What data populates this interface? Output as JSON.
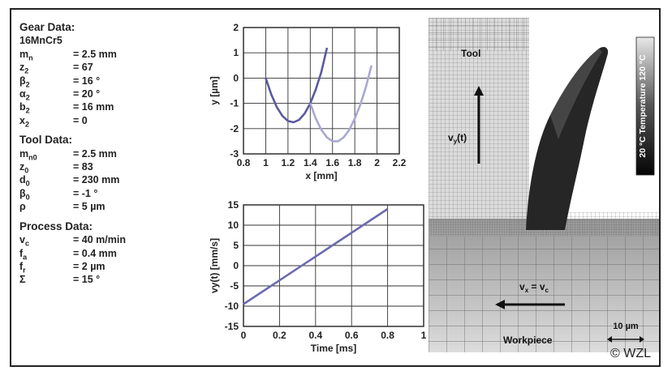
{
  "gear_data": {
    "title": "Gear Data:",
    "material": "16MnCr5",
    "params": [
      {
        "sym": "m",
        "sub": "n",
        "val": "= 2.5 mm"
      },
      {
        "sym": "z",
        "sub": "2",
        "val": "= 67"
      },
      {
        "sym": "β",
        "sub": "2",
        "val": "= 16 °"
      },
      {
        "sym": "α",
        "sub": "2",
        "val": "= 20 °"
      },
      {
        "sym": "b",
        "sub": "2",
        "val": "= 16 mm"
      },
      {
        "sym": "x",
        "sub": "2",
        "val": "= 0"
      }
    ]
  },
  "tool_data": {
    "title": "Tool Data:",
    "params": [
      {
        "sym": "m",
        "sub": "n0",
        "val": "= 2.5 mm"
      },
      {
        "sym": "z",
        "sub": "0",
        "val": "= 83"
      },
      {
        "sym": "d",
        "sub": "0",
        "val": "= 230 mm"
      },
      {
        "sym": "β",
        "sub": "0",
        "val": "= -1 °"
      },
      {
        "sym": "ρ",
        "sub": "",
        "val": "= 5 µm"
      }
    ]
  },
  "process_data": {
    "title": "Process Data:",
    "params": [
      {
        "sym": "v",
        "sub": "c",
        "val": "= 40 m/min"
      },
      {
        "sym": "f",
        "sub": "a",
        "val": "= 0.4 mm"
      },
      {
        "sym": "f",
        "sub": "r",
        "val": "= 2 µm"
      },
      {
        "sym": "Σ",
        "sub": "",
        "val": "= 15 °"
      }
    ]
  },
  "chart_data": [
    {
      "type": "line",
      "xlabel": "x [mm]",
      "ylabel": "y [µm]",
      "xlim": [
        0.8,
        2.2
      ],
      "ylim": [
        -3,
        2
      ],
      "xticks": [
        "0.8",
        "1",
        "1.2",
        "1.4",
        "1.6",
        "1.8",
        "2",
        "2.2"
      ],
      "yticks": [
        "2",
        "1",
        "0",
        "-1",
        "-2",
        "-3"
      ],
      "grid": true,
      "series": [
        {
          "x": [
            1.0,
            1.05,
            1.1,
            1.15,
            1.2,
            1.25,
            1.3,
            1.35,
            1.4,
            1.45,
            1.5,
            1.55
          ],
          "y": [
            0.0,
            -0.65,
            -1.15,
            -1.5,
            -1.7,
            -1.75,
            -1.65,
            -1.4,
            -1.0,
            -0.45,
            0.25,
            1.2
          ],
          "color": "#5b5a9e"
        },
        {
          "x": [
            1.4,
            1.45,
            1.5,
            1.55,
            1.6,
            1.65,
            1.7,
            1.75,
            1.8,
            1.85,
            1.9,
            1.95
          ],
          "y": [
            -1.0,
            -1.6,
            -2.05,
            -2.35,
            -2.5,
            -2.5,
            -2.35,
            -2.05,
            -1.6,
            -1.05,
            -0.35,
            0.5
          ],
          "color": "#a9a8d4"
        }
      ]
    },
    {
      "type": "line",
      "xlabel": "Time [ms]",
      "ylabel": "vy(t) [mm/s]",
      "xlim": [
        0,
        1
      ],
      "ylim": [
        -15,
        15
      ],
      "xticks": [
        "0",
        "0.2",
        "0.4",
        "0.6",
        "0.8",
        "1"
      ],
      "yticks": [
        "15",
        "10",
        "5",
        "0",
        "-5",
        "-10",
        "-15"
      ],
      "grid": true,
      "series": [
        {
          "x": [
            0,
            0.8
          ],
          "y": [
            -9.5,
            14
          ],
          "color": "#6c6ab0"
        }
      ]
    }
  ],
  "simulation": {
    "tool_label": "Tool",
    "workpiece_label": "Workpiece",
    "vy_label": "v",
    "vy_sub": "y",
    "vy_arg": "(t)",
    "vx_label": "v",
    "vx_sub": "x",
    "vx_eq": " = v",
    "vx_sub2": "c",
    "scale_label": "10 µm",
    "temp_bar_label": "20 °C  Temperature 120 °C"
  },
  "copyright": "© WZL"
}
